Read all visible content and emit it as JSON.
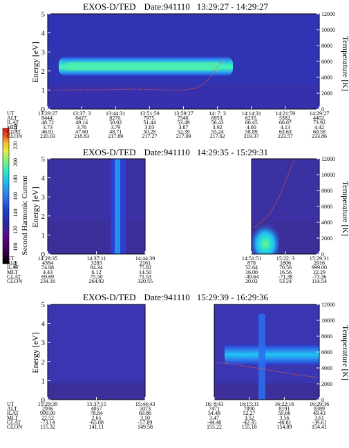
{
  "colorbar": {
    "label": "Second Harmonic Current",
    "ticks": [
      "80",
      "100",
      "120",
      "140",
      "160",
      "180",
      "200",
      "220",
      "240"
    ],
    "colors": [
      "#000000",
      "#3a0055",
      "#5a0a8a",
      "#2a2a9e",
      "#1f3fd6",
      "#2d7af0",
      "#21b7f2",
      "#2fe8c8",
      "#7ff07a",
      "#e8f03a",
      "#f0b52a",
      "#ef4a1e",
      "#e0141a"
    ]
  },
  "chart_data": [
    {
      "type": "heatmap",
      "title": "EXOS-D/TED",
      "date_label": "Date:941110",
      "time_range": "13:29:27 - 14:29:27",
      "ylabel": "Energy [eV]",
      "ylabel_right": "Temperature [K]",
      "ylim": [
        0,
        5
      ],
      "ylim_right": [
        0,
        12000
      ],
      "yticks": [
        "0",
        "1",
        "2",
        "3",
        "4",
        "5"
      ],
      "yticks_right": [
        "0",
        "2000",
        "4000",
        "6000",
        "8000",
        "10000",
        "12000"
      ],
      "ephemeris_labels": [
        "UT",
        "ALT",
        "ILAT",
        "MLT",
        "GLAT",
        "GLON"
      ],
      "ephemeris": [
        [
          "13:29:27",
          "8444.",
          "48.72",
          "3.73",
          "46.91",
          "220.03"
        ],
        [
          "13:37: 3",
          "8427.",
          "49.14",
          "3.76",
          "47.60",
          "218.83"
        ],
        [
          "13:44:31",
          "8270.",
          "50.02",
          "3.79",
          "48.71",
          "217.89"
        ],
        [
          "13:51:59",
          "7975.",
          "51.44",
          "3.83",
          "50.28",
          "217.27"
        ],
        [
          "13:59:27",
          "7540.",
          "53.49",
          "3.87",
          "52.39",
          "217.09"
        ],
        [
          "14: 7: 3",
          "6953.",
          "56.43",
          "3.92",
          "55.24",
          "217.62"
        ],
        [
          "14:14:31",
          "6235.",
          "60.45",
          "4.00",
          "58.89",
          "219.37"
        ],
        [
          "14:21:59",
          "5382.",
          "66.07",
          "4.13",
          "63.63",
          "223.57"
        ],
        [
          "14:29:27",
          "4402.",
          "73.92",
          "4.42",
          "69.58",
          "233.86"
        ]
      ],
      "gap": null
    },
    {
      "type": "heatmap",
      "title": "EXOS-D/TED",
      "date_label": "Date:941110",
      "time_range": "14:29:35 - 15:29:31",
      "ylabel": "Energy [eV]",
      "ylabel_right": "Temperature [K]",
      "ylim": [
        0,
        5
      ],
      "ylim_right": [
        0,
        12000
      ],
      "yticks": [
        "0",
        "1",
        "2",
        "3",
        "4",
        "5"
      ],
      "yticks_right": [
        "0",
        "2000",
        "4000",
        "6000",
        "8000",
        "10000",
        "12000"
      ],
      "ephemeris_labels": [
        "UT",
        "ALT",
        "ILAT",
        "MLT",
        "GLAT",
        "GLON"
      ],
      "ephemeris": [
        [
          "14:29:35",
          "4384",
          "74.08",
          "4.43",
          "69.69",
          "234.16"
        ],
        [
          "14:37:11",
          "3283",
          "84.34",
          "6.12",
          "75.50",
          "264.92"
        ],
        [
          "14:44:39",
          "2161",
          "75.82",
          "14.50",
          "71.53",
          "320.55"
        ],
        [
          "14:51:51",
          "878",
          "52.64",
          "16.00",
          "-49.64",
          "20.02"
        ],
        [
          "15:22: 3",
          "1806",
          "70.56",
          "16.56",
          "-71.38",
          "53.24"
        ],
        [
          "15:29:31",
          "2916",
          "999.00",
          "22.29",
          "-73.36",
          "114.54"
        ]
      ],
      "gap": [
        "14:44:39",
        "14:51:51"
      ]
    },
    {
      "type": "heatmap",
      "title": "EXOS-D/TED",
      "date_label": "Date:941110",
      "time_range": "15:29:39 - 16:29:36",
      "ylabel": "Energy [eV]",
      "ylabel_right": "Temperature [K]",
      "ylim": [
        0,
        5
      ],
      "ylim_right": [
        0,
        12000
      ],
      "yticks": [
        "0",
        "1",
        "2",
        "3",
        "4",
        "5"
      ],
      "yticks_right": [
        "0",
        "2000",
        "4000",
        "6000",
        "8000",
        "10000",
        "12000"
      ],
      "ephemeris_labels": [
        "UT",
        "ALT",
        "ILAT",
        "MLT",
        "GLAT",
        "GLON"
      ],
      "ephemeris": [
        [
          "15:29:39",
          "2936",
          "999.00",
          "22.52",
          "-73.14",
          "115.32"
        ],
        [
          "15:37:15",
          "4057",
          "78.84",
          "2.65",
          "-65.08",
          "141.11"
        ],
        [
          "15:44:43",
          "5073",
          "69.86",
          "3.10",
          "-57.89",
          "149.58"
        ],
        [
          "16: 8:43",
          "7471",
          "54.48",
          "3.47",
          "-44.40",
          "155.22"
        ],
        [
          "16:15:31",
          "7890",
          "52.27",
          "3.52",
          "-42.35",
          "155.18"
        ],
        [
          "16:22:16",
          "8191",
          "50.66",
          "3.56",
          "-40.81",
          "154.89"
        ],
        [
          "16:29:36",
          "8389",
          "49.43",
          "3.61",
          "-39.61",
          "154.41"
        ]
      ],
      "gap": [
        "15:44:43",
        "16: 8:43"
      ]
    }
  ]
}
